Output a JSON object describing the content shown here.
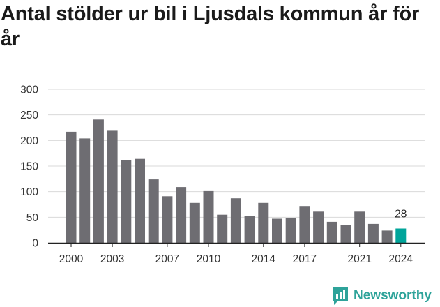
{
  "title": "Antal stölder ur bil i Ljusdals kommun år för år",
  "brand": {
    "name": "Newsworthy",
    "color": "#2ea39a",
    "icon": "chart-speech-bubble-icon"
  },
  "colors": {
    "bar": "#6e6d72",
    "highlight": "#00a49a",
    "grid": "#d9d9d9",
    "axis": "#222222"
  },
  "chart_data": {
    "type": "bar",
    "title": "Antal stölder ur bil i Ljusdals kommun år för år",
    "xlabel": "",
    "ylabel": "",
    "ylim": [
      0,
      300
    ],
    "yticks": [
      0,
      50,
      100,
      150,
      200,
      250,
      300
    ],
    "xtick_labels": [
      "2000",
      "2003",
      "2007",
      "2010",
      "2014",
      "2017",
      "2021",
      "2024"
    ],
    "grid": true,
    "categories": [
      "2000",
      "2001",
      "2002",
      "2003",
      "2004",
      "2005",
      "2006",
      "2007",
      "2008",
      "2009",
      "2010",
      "2011",
      "2012",
      "2013",
      "2014",
      "2015",
      "2016",
      "2017",
      "2018",
      "2019",
      "2020",
      "2021",
      "2022",
      "2023",
      "2024"
    ],
    "values": [
      217,
      204,
      241,
      219,
      161,
      164,
      124,
      91,
      109,
      78,
      101,
      55,
      87,
      52,
      78,
      47,
      49,
      72,
      61,
      41,
      35,
      61,
      37,
      24,
      28
    ],
    "highlight": {
      "category": "2024",
      "label": "28"
    }
  }
}
